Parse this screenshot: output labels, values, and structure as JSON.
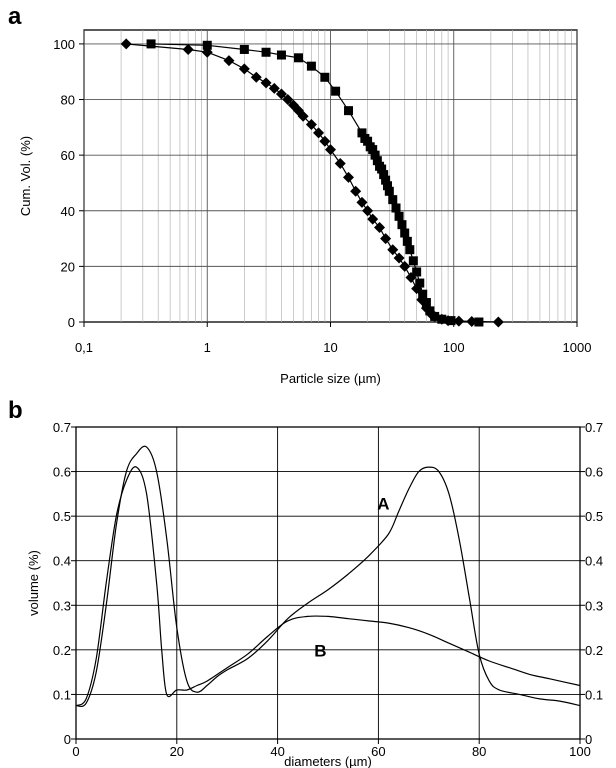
{
  "chart_data": [
    {
      "panel_label": "a",
      "type": "scatter",
      "xlabel": "Particle size (µm)",
      "ylabel": "Cum. Vol. (%)",
      "xscale": "log",
      "xlim": [
        0.1,
        1000
      ],
      "ylim": [
        0,
        105
      ],
      "xticks": [
        "0,1",
        "1",
        "10",
        "100",
        "1000"
      ],
      "yticks": [
        "0",
        "20",
        "40",
        "60",
        "80",
        "100"
      ],
      "grid": true,
      "series": [
        {
          "marker": "square",
          "x": [
            0.35,
            1.0,
            2.0,
            3.0,
            4.0,
            5.5,
            7.0,
            9.0,
            11.0,
            14.0,
            18.0,
            19.0,
            20.0,
            21.0,
            22.0,
            23.0,
            24.0,
            25.0,
            26.0,
            27.0,
            28.0,
            29.0,
            30.0,
            32.0,
            34.0,
            36.0,
            38.0,
            40.0,
            42.0,
            44.0,
            47.0,
            50.0,
            53.0,
            56.0,
            60.0,
            64.0,
            70.0,
            80.0,
            95.0,
            160.0
          ],
          "y": [
            100,
            99.5,
            98,
            97,
            96,
            95,
            92,
            88,
            83,
            76,
            68,
            66,
            65,
            63,
            62,
            60,
            58,
            56,
            55,
            53,
            51,
            49,
            47,
            44,
            41,
            38,
            35,
            32,
            29,
            26,
            22,
            18,
            14,
            10,
            7,
            4,
            2,
            1,
            0.5,
            0
          ]
        },
        {
          "marker": "diamond",
          "x": [
            0.22,
            0.7,
            1.0,
            1.5,
            2.0,
            2.5,
            3.0,
            3.5,
            4.0,
            4.5,
            5.0,
            5.5,
            6.0,
            7.0,
            8.0,
            9.0,
            10.0,
            12.0,
            14.0,
            16.0,
            18.0,
            20.0,
            22.0,
            25.0,
            28.0,
            32.0,
            36.0,
            40.0,
            45.0,
            50.0,
            55.0,
            60.0,
            65.0,
            70.0,
            80.0,
            90.0,
            110.0,
            140.0,
            230.0
          ],
          "y": [
            100,
            98,
            97,
            94,
            91,
            88,
            86,
            84,
            82,
            80,
            78,
            76,
            74,
            71,
            68,
            65,
            62,
            57,
            52,
            47,
            43,
            40,
            37,
            34,
            30,
            26,
            23,
            20,
            16,
            12,
            8,
            5,
            3,
            2,
            1,
            0.5,
            0.3,
            0.2,
            0
          ]
        }
      ]
    },
    {
      "panel_label": "b",
      "type": "line",
      "xlabel": "diameters (µm)",
      "ylabel": "volume (%)",
      "xlim": [
        0,
        100
      ],
      "ylim": [
        0,
        0.7
      ],
      "xticks": [
        "0",
        "20",
        "40",
        "60",
        "80",
        "100"
      ],
      "yticks": [
        "0",
        "0.1",
        "0.2",
        "0.3",
        "0.4",
        "0.5",
        "0.6",
        "0.7"
      ],
      "grid": true,
      "series": [
        {
          "name": "A",
          "x": [
            0,
            2,
            4,
            6,
            8,
            10,
            12,
            14,
            16,
            18,
            20,
            22,
            24,
            26,
            28,
            30,
            34,
            38,
            42,
            46,
            50,
            54,
            58,
            62,
            64,
            66,
            68,
            70,
            72,
            74,
            76,
            78,
            80,
            82,
            84,
            88,
            92,
            96,
            100
          ],
          "y": [
            0.075,
            0.08,
            0.15,
            0.3,
            0.48,
            0.6,
            0.64,
            0.655,
            0.6,
            0.45,
            0.25,
            0.13,
            0.105,
            0.12,
            0.14,
            0.155,
            0.18,
            0.22,
            0.27,
            0.305,
            0.335,
            0.37,
            0.41,
            0.46,
            0.51,
            0.56,
            0.6,
            0.61,
            0.6,
            0.55,
            0.45,
            0.32,
            0.19,
            0.13,
            0.11,
            0.1,
            0.09,
            0.085,
            0.075
          ]
        },
        {
          "name": "B",
          "x": [
            0,
            2,
            4,
            6,
            8,
            10,
            12,
            14,
            16,
            17,
            18,
            20,
            22,
            24,
            26,
            30,
            34,
            38,
            42,
            46,
            50,
            54,
            58,
            62,
            66,
            70,
            74,
            78,
            82,
            86,
            90,
            94,
            100
          ],
          "y": [
            0.075,
            0.09,
            0.18,
            0.35,
            0.5,
            0.58,
            0.61,
            0.55,
            0.35,
            0.2,
            0.1,
            0.11,
            0.11,
            0.12,
            0.13,
            0.16,
            0.19,
            0.23,
            0.265,
            0.275,
            0.275,
            0.27,
            0.265,
            0.26,
            0.25,
            0.235,
            0.215,
            0.195,
            0.175,
            0.16,
            0.145,
            0.135,
            0.12
          ]
        }
      ]
    }
  ]
}
